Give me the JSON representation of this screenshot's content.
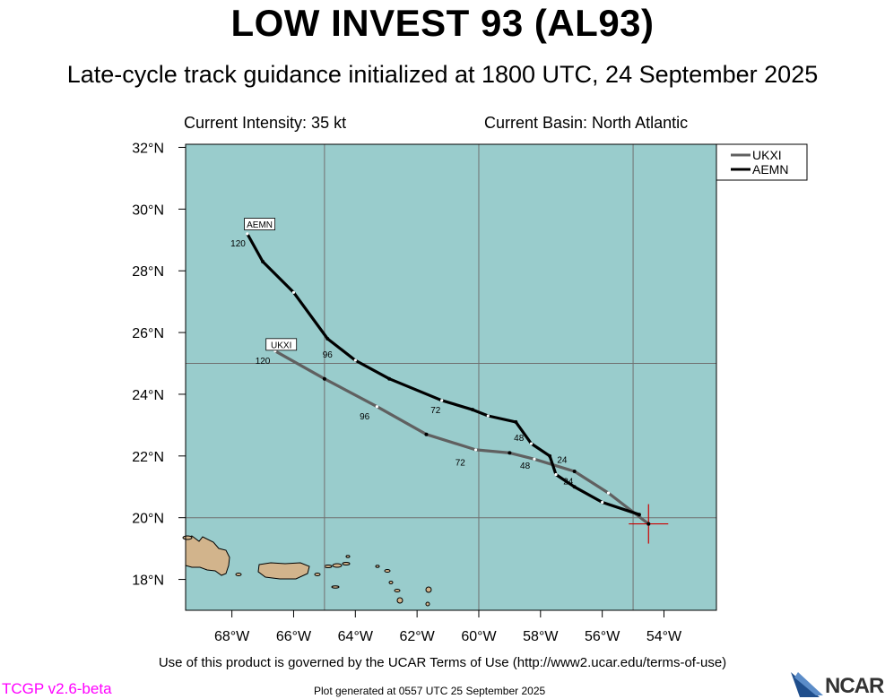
{
  "header": {
    "title": "LOW INVEST 93 (AL93)",
    "subtitle": "Late-cycle track guidance initialized at 1800 UTC, 24 September 2025"
  },
  "info": {
    "intensity": "Current Intensity: 35 kt",
    "basin": "Current Basin: North Atlantic"
  },
  "map": {
    "lon_range": [
      -69.5,
      -52.3
    ],
    "lat_range": [
      17.0,
      32.1
    ],
    "ocean_color": "#99cccc",
    "land_color": "#d2b48c",
    "grid_lons": [
      -65,
      -60,
      -55
    ],
    "grid_lats": [
      25,
      20
    ],
    "lon_ticks": [
      {
        "value": -68,
        "label": "68°W"
      },
      {
        "value": -66,
        "label": "66°W"
      },
      {
        "value": -64,
        "label": "64°W"
      },
      {
        "value": -62,
        "label": "62°W"
      },
      {
        "value": -60,
        "label": "60°W"
      },
      {
        "value": -58,
        "label": "58°W"
      },
      {
        "value": -56,
        "label": "56°W"
      },
      {
        "value": -54,
        "label": "54°W"
      }
    ],
    "lat_ticks": [
      {
        "value": 32,
        "label": "32°N"
      },
      {
        "value": 30,
        "label": "30°N"
      },
      {
        "value": 28,
        "label": "28°N"
      },
      {
        "value": 26,
        "label": "26°N"
      },
      {
        "value": 24,
        "label": "24°N"
      },
      {
        "value": 22,
        "label": "22°N"
      },
      {
        "value": 20,
        "label": "20°N"
      },
      {
        "value": 18,
        "label": "18°N"
      }
    ],
    "storm_position": {
      "lon": -54.5,
      "lat": 19.8,
      "color": "#cc0000"
    },
    "legend": [
      {
        "name": "UKXI",
        "color": "#606060"
      },
      {
        "name": "AEMN",
        "color": "#000000"
      }
    ],
    "tracks": [
      {
        "name": "UKXI",
        "color": "#606060",
        "points": [
          {
            "lon": -54.5,
            "lat": 19.8
          },
          {
            "lon": -55.8,
            "lat": 20.8
          },
          {
            "lon": -56.9,
            "lat": 21.5
          },
          {
            "lon": -58.2,
            "lat": 21.9
          },
          {
            "lon": -59.0,
            "lat": 22.1
          },
          {
            "lon": -60.1,
            "lat": 22.2
          },
          {
            "lon": -61.7,
            "lat": 22.7
          },
          {
            "lon": -63.3,
            "lat": 23.6
          },
          {
            "lon": -65.0,
            "lat": 24.5
          },
          {
            "lon": -66.6,
            "lat": 25.4
          }
        ],
        "labels": [
          {
            "text": "24",
            "lon": -57.3,
            "lat": 21.9
          },
          {
            "text": "48",
            "lon": -58.5,
            "lat": 21.7
          },
          {
            "text": "72",
            "lon": -60.6,
            "lat": 21.8
          },
          {
            "text": "96",
            "lon": -63.7,
            "lat": 23.3
          },
          {
            "text": "120",
            "lon": -67.0,
            "lat": 25.1
          }
        ],
        "end_label": {
          "text": "UKXI",
          "lon": -66.4,
          "lat": 25.6
        }
      },
      {
        "name": "AEMN",
        "color": "#000000",
        "points": [
          {
            "lon": -54.8,
            "lat": 20.1
          },
          {
            "lon": -56.0,
            "lat": 20.5
          },
          {
            "lon": -56.9,
            "lat": 21.0
          },
          {
            "lon": -57.5,
            "lat": 21.4
          },
          {
            "lon": -57.7,
            "lat": 22.0
          },
          {
            "lon": -58.3,
            "lat": 22.4
          },
          {
            "lon": -58.8,
            "lat": 23.1
          },
          {
            "lon": -59.7,
            "lat": 23.3
          },
          {
            "lon": -60.2,
            "lat": 23.5
          },
          {
            "lon": -61.2,
            "lat": 23.8
          },
          {
            "lon": -62.9,
            "lat": 24.5
          },
          {
            "lon": -64.0,
            "lat": 25.1
          },
          {
            "lon": -64.9,
            "lat": 25.8
          },
          {
            "lon": -66.0,
            "lat": 27.3
          },
          {
            "lon": -67.0,
            "lat": 28.3
          },
          {
            "lon": -67.5,
            "lat": 29.2
          }
        ],
        "labels": [
          {
            "text": "24",
            "lon": -57.1,
            "lat": 21.2
          },
          {
            "text": "48",
            "lon": -58.7,
            "lat": 22.6
          },
          {
            "text": "72",
            "lon": -61.4,
            "lat": 23.5
          },
          {
            "text": "96",
            "lon": -64.9,
            "lat": 25.3
          },
          {
            "text": "120",
            "lon": -67.8,
            "lat": 28.9
          }
        ],
        "end_label": {
          "text": "AEMN",
          "lon": -67.1,
          "lat": 29.5
        }
      }
    ]
  },
  "footer": {
    "terms": "Use of this product is governed by the UCAR Terms of Use (http://www2.ucar.edu/terms-of-use)",
    "generated": "Plot generated at 0557 UTC   25 September 2025",
    "version": "TCGP v2.6-beta",
    "logo_text": "NCAR"
  }
}
